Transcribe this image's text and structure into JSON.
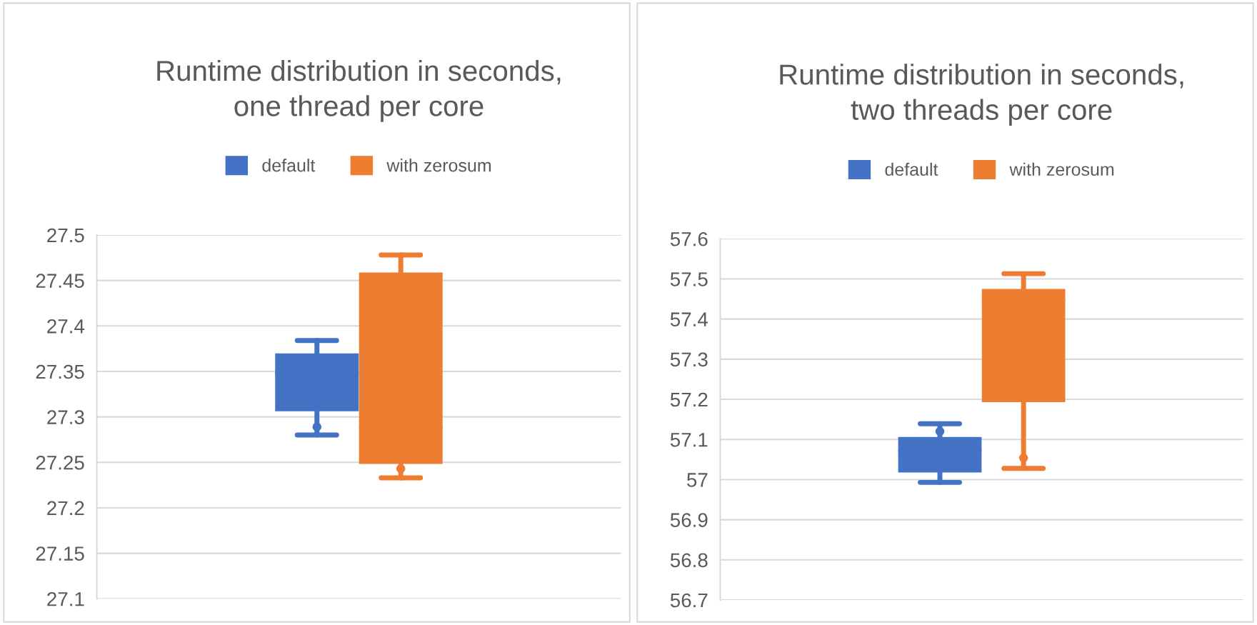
{
  "chart_data": [
    {
      "type": "box",
      "title": "Runtime distribution in seconds,\none thread per core",
      "categories": [
        null
      ],
      "ylim": [
        27.1,
        27.5
      ],
      "yticks": [
        27.1,
        27.15,
        27.2,
        27.25,
        27.3,
        27.35,
        27.4,
        27.45,
        27.5
      ],
      "grid": "y",
      "legend": "top",
      "tick_labels": "y",
      "series": [
        {
          "name": "default",
          "color": "#4472c4",
          "boxes": [
            {
              "low": 27.28,
              "q1": 27.309,
              "median": 27.348,
              "q3": 27.367,
              "high": 27.384,
              "mean": 27.289
            }
          ]
        },
        {
          "name": "with zerosum",
          "color": "#ed7d31",
          "boxes": [
            {
              "low": 27.233,
              "q1": 27.251,
              "median": 27.288,
              "q3": 27.456,
              "high": 27.478,
              "mean": 27.243
            }
          ]
        }
      ]
    },
    {
      "type": "box",
      "title": "Runtime distribution in seconds,\ntwo threads per core",
      "categories": [
        null
      ],
      "ylim": [
        56.7,
        57.6
      ],
      "yticks": [
        56.7,
        56.8,
        56.9,
        57,
        57.1,
        57.2,
        57.3,
        57.4,
        57.5,
        57.6
      ],
      "grid": "y",
      "legend": "top",
      "tick_labels": "y",
      "series": [
        {
          "name": "default",
          "color": "#4472c4",
          "boxes": [
            {
              "low": 56.993,
              "q1": 57.024,
              "median": 57.071,
              "q3": 57.1,
              "high": 57.139,
              "mean": 57.12
            }
          ]
        },
        {
          "name": "with zerosum",
          "color": "#ed7d31",
          "boxes": [
            {
              "low": 57.028,
              "q1": 57.199,
              "median": 57.448,
              "q3": 57.469,
              "high": 57.513,
              "mean": 57.054
            }
          ]
        }
      ]
    }
  ]
}
